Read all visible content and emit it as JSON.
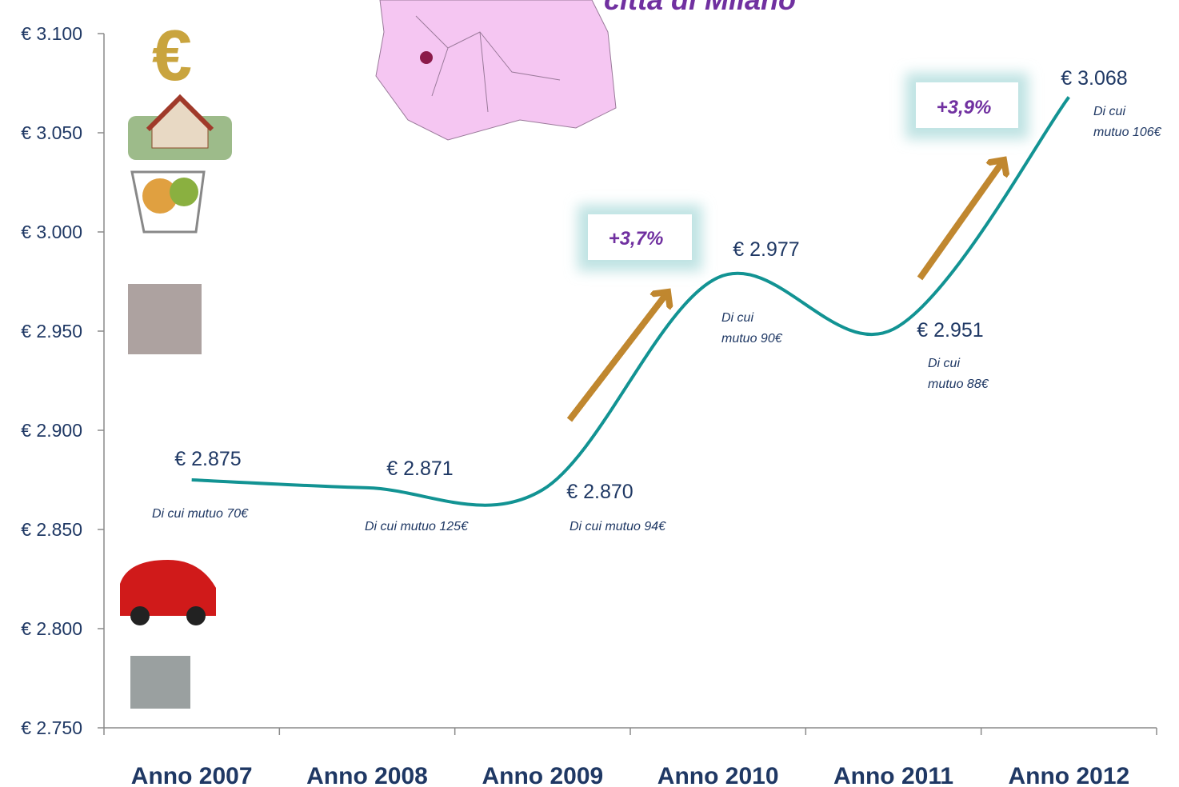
{
  "chart_data": {
    "type": "line",
    "title": "città di Milano",
    "categories": [
      "Anno 2007",
      "Anno 2008",
      "Anno 2009",
      "Anno 2010",
      "Anno 2011",
      "Anno 2012"
    ],
    "series": [
      {
        "color": "#129393",
        "values": [
          2875,
          2871,
          2870,
          2977,
          2951,
          3068
        ],
        "value_labels": [
          "€ 2.875",
          "€ 2.871",
          "€ 2.870",
          "€ 2.977",
          "€ 2.951",
          "€ 3.068"
        ]
      }
    ],
    "notes": [
      [
        "Di cui mutuo 70€"
      ],
      [
        "Di cui mutuo 125€"
      ],
      [
        "Di cui mutuo 94€"
      ],
      [
        "Di cui",
        "mutuo 90€"
      ],
      [
        "Di cui",
        "mutuo 88€"
      ],
      [
        "Di cui",
        "mutuo 106€"
      ]
    ],
    "growth_labels": [
      "+3,7%",
      "+3,9%"
    ],
    "ylim": [
      2750,
      3100
    ],
    "yticks": [
      {
        "value": 2750,
        "label": "€ 2.750"
      },
      {
        "value": 2800,
        "label": "€ 2.800"
      },
      {
        "value": 2850,
        "label": "€ 2.850"
      },
      {
        "value": 2900,
        "label": "€ 2.900"
      },
      {
        "value": 2950,
        "label": "€ 2.950"
      },
      {
        "value": 3000,
        "label": "€ 3.000"
      },
      {
        "value": 3050,
        "label": "€ 3.050"
      },
      {
        "value": 3100,
        "label": "€ 3.100"
      }
    ]
  }
}
